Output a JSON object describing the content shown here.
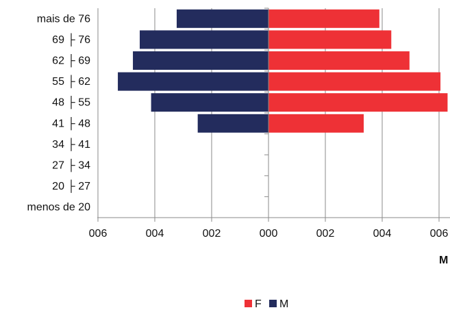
{
  "chart_data": {
    "type": "bar",
    "orientation": "horizontal",
    "layout": "population-pyramid",
    "categories": [
      "mais de 76",
      "69 ├ 76",
      "62 ├ 69",
      "55 ├ 62",
      "48 ├ 55",
      "41 ├ 48",
      "34 ├ 41",
      "27 ├ 34",
      "20 ├ 27",
      "menos de 20"
    ],
    "series": [
      {
        "name": "F",
        "color": "#ee3136",
        "values": [
          390,
          432,
          496,
          605,
          630,
          335,
          0,
          0,
          0,
          0
        ]
      },
      {
        "name": "M",
        "color": "#232c5d",
        "values": [
          323,
          453,
          477,
          530,
          413,
          249,
          0,
          0,
          0,
          0
        ]
      }
    ],
    "x_ticks": [
      "006",
      "004",
      "002",
      "000",
      "002",
      "004",
      "006"
    ],
    "x_tick_values": [
      -600,
      -400,
      -200,
      0,
      200,
      400,
      600
    ],
    "xlim": [
      -600,
      600
    ],
    "x_unit_label": "M",
    "grid": true,
    "legend": "bottom-center"
  }
}
